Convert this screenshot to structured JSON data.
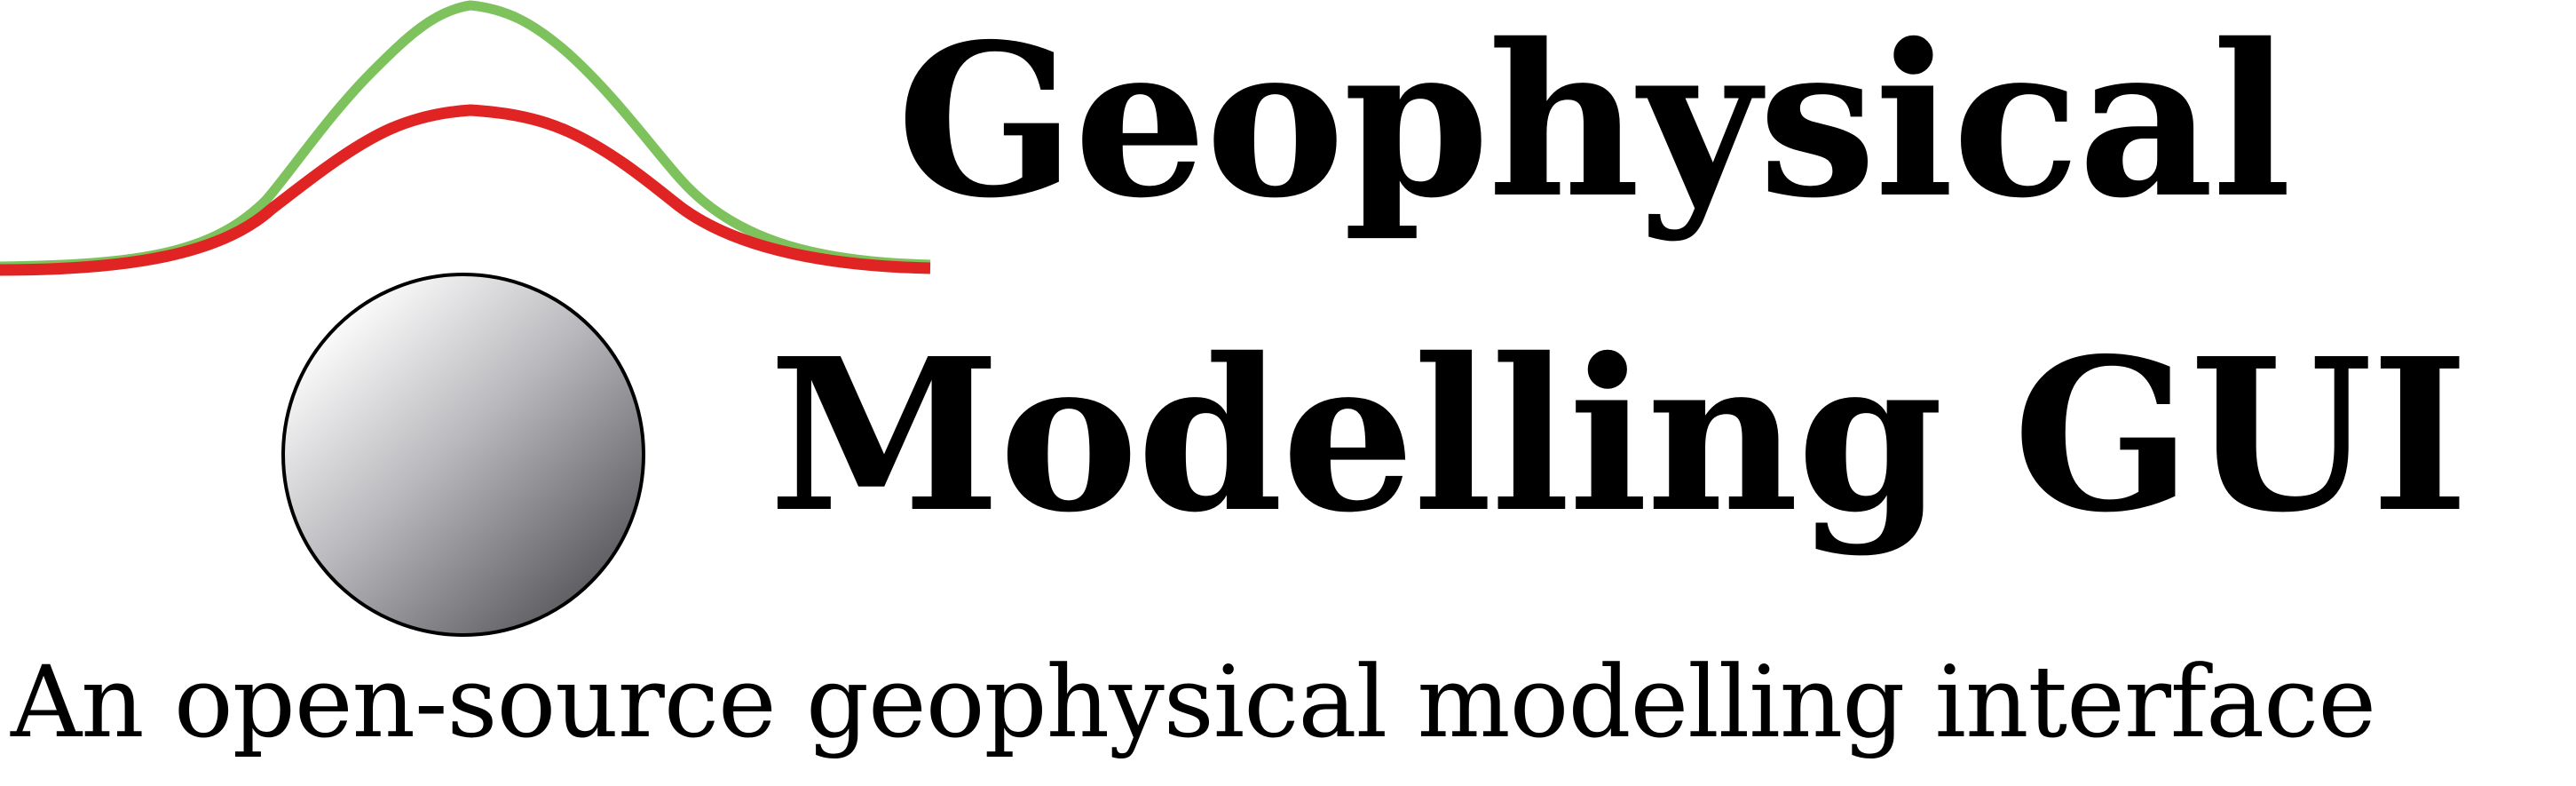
{
  "logo": {
    "title_line_1": "Geophysical",
    "title_line_2": "Modelling GUI",
    "subtitle": "An open-source geophysical modelling interface"
  },
  "colors": {
    "green_curve": "#7dc25c",
    "red_curve": "#e02424",
    "text": "#000000",
    "sphere_light": "#ffffff",
    "sphere_dark": "#555559",
    "sphere_outline": "#000000"
  },
  "icons": {
    "gravity_anomaly_curves": "gaussian-anomaly-curves-icon",
    "buried_body": "shaded-sphere-icon"
  }
}
